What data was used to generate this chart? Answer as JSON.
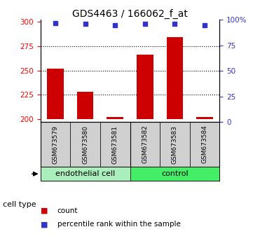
{
  "title": "GDS4463 / 166062_f_at",
  "samples": [
    "GSM673579",
    "GSM673580",
    "GSM673581",
    "GSM673582",
    "GSM673583",
    "GSM673584"
  ],
  "counts": [
    252,
    228,
    202,
    266,
    284,
    202
  ],
  "percentiles": [
    97,
    96,
    95,
    96,
    96,
    95
  ],
  "cell_type_labels": [
    "endothelial cell",
    "control"
  ],
  "cell_type_colors": [
    "#aaeebb",
    "#44ee66"
  ],
  "ylim_left": [
    197,
    302
  ],
  "ylim_right": [
    0,
    100
  ],
  "yticks_left": [
    200,
    225,
    250,
    275,
    300
  ],
  "yticks_right": [
    0,
    25,
    50,
    75,
    100
  ],
  "ytick_right_labels": [
    "0",
    "25",
    "50",
    "75",
    "100%"
  ],
  "bar_color": "#cc0000",
  "dot_color": "#3333cc",
  "bar_base": 200,
  "grid_lines": [
    225,
    250,
    275
  ],
  "title_fontsize": 10,
  "tick_fontsize": 7.5,
  "sample_fontsize": 6.5,
  "celltype_fontsize": 8,
  "legend_fontsize": 7.5
}
